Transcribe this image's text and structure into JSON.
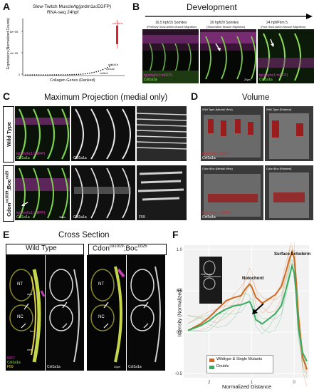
{
  "panels": {
    "a": {
      "letter": "A",
      "title_line1": "Slow-Twitch Muscle/tg(prdm1a:EGFP)",
      "title_line2": "RNA-seq 24hpf",
      "ylabel": "Expression (Normalized Counts)",
      "xlabel": "Collagen Genes (Ranked)",
      "ticks_y": [
        "8e+05",
        "4e+05",
        "0"
      ],
      "gene_labels": [
        "col1a1a",
        "col1a1b",
        "col1a2",
        "col5a1"
      ]
    },
    "b": {
      "letter": "B",
      "header": "Development",
      "stages": [
        {
          "line1": "16.5 hpf/15 Somites",
          "line2": "(PreEarly Slow-twitch Muscle Migration)"
        },
        {
          "line1": "20 hpf/20 Somites",
          "line2": "(Slow-twitch Muscle Migration)"
        },
        {
          "line1": "24 hpf/Prim 5",
          "line2": "(Post Slow-twitch Muscle Migration)"
        }
      ],
      "marker_magenta": "tg(smyhc1:mRFP)",
      "marker_green": "Col1a1a",
      "scale": "20µm"
    },
    "c": {
      "letter": "C",
      "header": "Maximum Projection (medial only)",
      "row1": "Wild Type",
      "row2": "Cdon",
      "row2_sup1": "co1019",
      "row2_mid": ";Boc",
      "row2_sup2": "co25",
      "marker_magenta": "tg(smyhc1:mRFP)",
      "marker_green": "Col1a1a",
      "label_col1a1a": "Col1a1a",
      "label_f59": "F59",
      "scale": "30µm"
    },
    "d": {
      "letter": "D",
      "header": "Volume",
      "views": [
        "Wild Type (Medial View)",
        "Wild Type (Rotated)",
        "Cdon;Boc (Medial View)",
        "Cdon;Boc (Rotated)"
      ],
      "marker_red": "tg(smyhc1:mRFP)",
      "marker_white": "Col1a1a"
    },
    "e": {
      "letter": "E",
      "header": "Cross Section",
      "col1": "Wild Type",
      "col2_main": "Cdon",
      "col2_sup1": "co1019",
      "col2_mid": ";Boc",
      "col2_sup2": "co25",
      "tissues": [
        "NT",
        "NC",
        "vms",
        "vms",
        "hm"
      ],
      "markers": [
        "NCC",
        "Col1a1a",
        "F59"
      ],
      "label_col1a1a": "Col1a1a",
      "scale": "20µm"
    },
    "f": {
      "letter": "F",
      "ylabel": "Intensity (Normalized)",
      "xlabel": "Normalized Distance",
      "annot_notochord": "Notochord",
      "annot_ectoderm": "Surface Ectoderm",
      "inset_label": "Line Scan",
      "legend": [
        "Wildtype & Single Mutants",
        "Double"
      ]
    }
  },
  "chart_data": {
    "type": "line",
    "title": "",
    "xlabel": "Normalized Distance",
    "ylabel": "Intensity (Normalized)",
    "xlim": [
      2.6,
      -0.35
    ],
    "ylim": [
      -0.55,
      1.05
    ],
    "x_ticks": [
      2,
      1,
      0
    ],
    "y_ticks": [
      1.0,
      0.5,
      0.0,
      -0.5
    ],
    "colors": {
      "wildtype": "#d2691e",
      "double": "#3aaa5e"
    },
    "series": [
      {
        "name": "Wildtype & Single Mutants",
        "x": [
          2.5,
          2.2,
          2.0,
          1.8,
          1.6,
          1.4,
          1.25,
          1.15,
          1.05,
          1.0,
          0.9,
          0.75,
          0.6,
          0.45,
          0.3,
          0.2,
          0.1,
          0.05,
          0.0,
          -0.05,
          -0.1,
          -0.2,
          -0.3
        ],
        "y": [
          0.02,
          0.1,
          0.18,
          0.28,
          0.38,
          0.42,
          0.44,
          0.52,
          0.58,
          0.55,
          0.42,
          0.35,
          0.4,
          0.45,
          0.55,
          0.72,
          0.9,
          0.97,
          0.9,
          0.6,
          0.2,
          -0.3,
          -0.45
        ]
      },
      {
        "name": "Double",
        "x": [
          2.5,
          2.2,
          2.0,
          1.8,
          1.6,
          1.4,
          1.25,
          1.15,
          1.05,
          1.0,
          0.9,
          0.75,
          0.6,
          0.45,
          0.3,
          0.2,
          0.1,
          0.05,
          0.0,
          -0.05,
          -0.1,
          -0.2,
          -0.3
        ],
        "y": [
          0.02,
          0.08,
          0.14,
          0.22,
          0.28,
          0.32,
          0.33,
          0.35,
          0.37,
          0.32,
          0.15,
          0.1,
          0.16,
          0.22,
          0.32,
          0.5,
          0.7,
          0.8,
          0.72,
          0.45,
          0.05,
          -0.25,
          -0.35
        ]
      }
    ]
  }
}
